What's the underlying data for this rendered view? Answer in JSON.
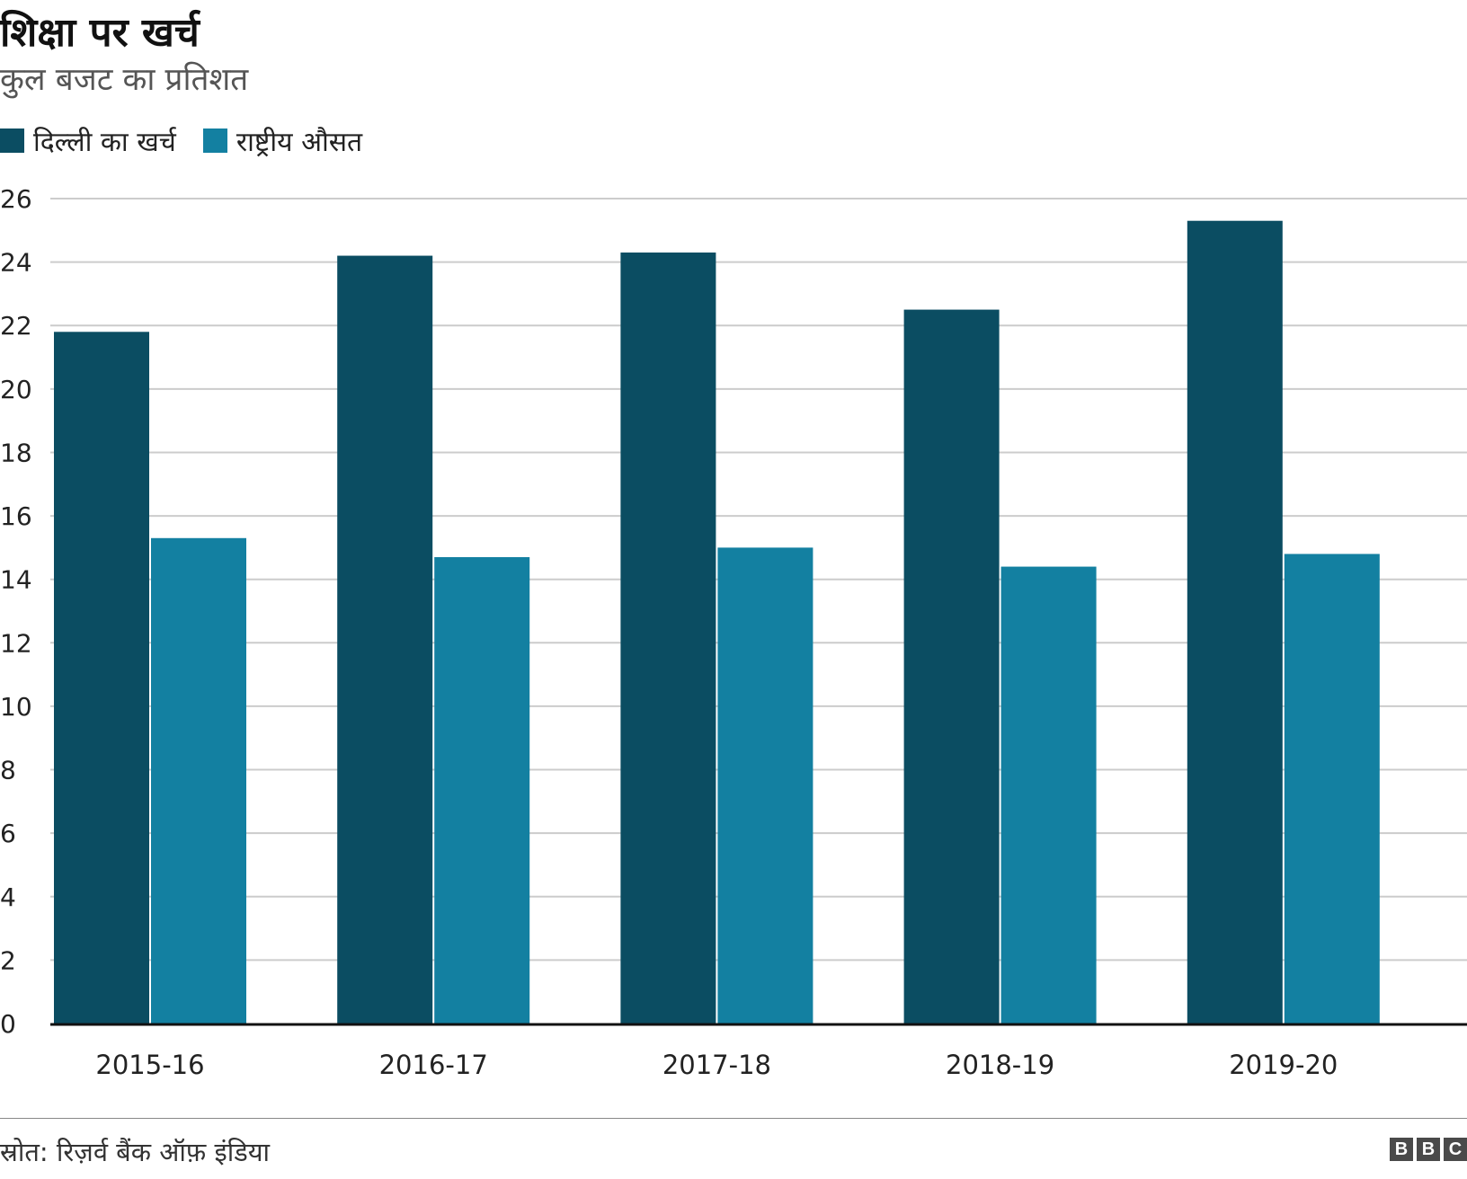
{
  "header": {
    "title": "शिक्षा पर खर्च",
    "subtitle": "कुल बजट का प्रतिशत"
  },
  "footer": {
    "source": "स्रोत: रिज़र्व बैंक ऑफ़ इंडिया",
    "logo": [
      "B",
      "B",
      "C"
    ]
  },
  "colors": {
    "delhi": "#0b4d62",
    "national": "#1380a1",
    "grid": "#cccccc",
    "axis": "#111111"
  },
  "chart_data": {
    "type": "bar",
    "categories": [
      "2015-16",
      "2016-17",
      "2017-18",
      "2018-19",
      "2019-20"
    ],
    "series": [
      {
        "name": "दिल्ली का खर्च",
        "values": [
          21.8,
          24.2,
          24.3,
          22.5,
          25.3
        ]
      },
      {
        "name": "राष्ट्रीय औसत",
        "values": [
          15.3,
          14.7,
          15.0,
          14.4,
          14.8
        ]
      }
    ],
    "title": "शिक्षा पर खर्च",
    "subtitle": "कुल बजट का प्रतिशत",
    "ylim": [
      0,
      26
    ],
    "yticks": [
      0,
      2,
      4,
      6,
      8,
      10,
      12,
      14,
      16,
      18,
      20,
      22,
      24,
      26
    ],
    "grid": true,
    "legend": "top-left"
  }
}
